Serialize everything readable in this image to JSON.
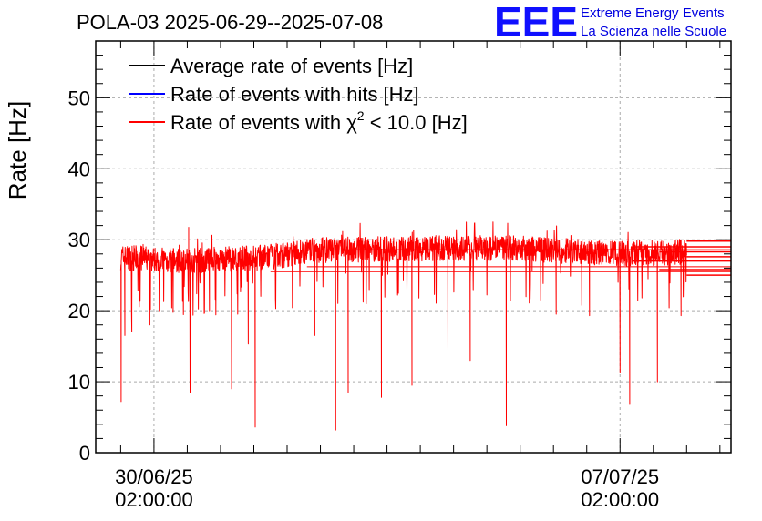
{
  "header": {
    "title": "POLA-03 2025-06-29--2025-07-08",
    "logo_text": "EEE",
    "logo_line1": "Extreme Energy Events",
    "logo_line2": "La Scienza nelle Scuole"
  },
  "colors": {
    "average": "#000000",
    "hits": "#0000ff",
    "chi2": "#ff0000",
    "grid": "#aaaaaa",
    "logo": "#1010ff"
  },
  "legend": [
    {
      "label": "Average rate of events [Hz]",
      "color": "#000000"
    },
    {
      "label": "Rate of events with hits [Hz]",
      "color": "#0000ff"
    },
    {
      "label": "Rate of events with χ² < 10.0 [Hz]",
      "color": "#ff0000",
      "prefix": "Rate of events with ",
      "chi": "χ",
      "sup": "2",
      "suffix": " < 10.0 [Hz]"
    }
  ],
  "chart_data": {
    "type": "line",
    "title": "POLA-03 2025-06-29--2025-07-08",
    "ylabel": "Rate [Hz]",
    "xlabel": "",
    "ylim": [
      0,
      58
    ],
    "yticks": [
      0,
      10,
      20,
      30,
      40,
      50
    ],
    "xlim": [
      "2025-06-29T05:00:00",
      "2025-07-08T18:00:00"
    ],
    "xticks": [
      {
        "date": "2025-06-30T02:00:00",
        "line1": "30/06/25",
        "line2": "02:00:00"
      },
      {
        "date": "2025-07-07T02:00:00",
        "line1": "07/07/25",
        "line2": "02:00:00"
      }
    ],
    "grid": true,
    "legend_position": "top-left",
    "data_range": [
      "2025-06-29T14:00:00",
      "2025-07-08T02:00:00"
    ],
    "series": [
      {
        "name": "Rate of events with χ² < 10.0 [Hz]",
        "color": "#ff0000",
        "trend": [
          {
            "t": "2025-06-29T14:00:00",
            "v": 27.5
          },
          {
            "t": "2025-06-30T12:00:00",
            "v": 27.0
          },
          {
            "t": "2025-07-01T18:00:00",
            "v": 27.5
          },
          {
            "t": "2025-07-02T12:00:00",
            "v": 28.5
          },
          {
            "t": "2025-07-04T00:00:00",
            "v": 28.8
          },
          {
            "t": "2025-07-05T12:00:00",
            "v": 28.8
          },
          {
            "t": "2025-07-07T00:00:00",
            "v": 28.0
          },
          {
            "t": "2025-07-08T02:00:00",
            "v": 28.3
          }
        ],
        "dips": [
          {
            "t": "2025-06-29T14:10:00",
            "v": 7.2
          },
          {
            "t": "2025-06-29T15:30:00",
            "v": 16.5
          },
          {
            "t": "2025-06-29T18:00:00",
            "v": 17.0
          },
          {
            "t": "2025-06-30T00:30:00",
            "v": 18.0
          },
          {
            "t": "2025-06-30T15:00:00",
            "v": 8.5
          },
          {
            "t": "2025-06-30T22:00:00",
            "v": 20.0
          },
          {
            "t": "2025-07-01T06:00:00",
            "v": 9.0
          },
          {
            "t": "2025-07-01T12:00:00",
            "v": 15.3
          },
          {
            "t": "2025-07-01T14:30:00",
            "v": 3.6
          },
          {
            "t": "2025-07-02T12:00:00",
            "v": 16.5
          },
          {
            "t": "2025-07-02T19:30:00",
            "v": 3.2
          },
          {
            "t": "2025-07-03T00:00:00",
            "v": 8.5
          },
          {
            "t": "2025-07-03T12:00:00",
            "v": 7.8
          },
          {
            "t": "2025-07-03T23:00:00",
            "v": 9.5
          },
          {
            "t": "2025-07-04T12:00:00",
            "v": 14.5
          },
          {
            "t": "2025-07-04T20:00:00",
            "v": 13.0
          },
          {
            "t": "2025-07-05T09:00:00",
            "v": 3.8
          },
          {
            "t": "2025-07-06T03:00:00",
            "v": 19.5
          },
          {
            "t": "2025-07-06T15:00:00",
            "v": 19.3
          },
          {
            "t": "2025-07-07T02:00:00",
            "v": 11.3
          },
          {
            "t": "2025-07-07T05:30:00",
            "v": 6.8
          },
          {
            "t": "2025-07-07T15:30:00",
            "v": 10.0
          },
          {
            "t": "2025-07-08T00:00:00",
            "v": 19.3
          }
        ],
        "tail_levels": [
          25.0,
          25.8,
          27.0,
          27.6,
          28.3,
          29.0,
          29.8
        ]
      },
      {
        "name": "Rate of events with hits [Hz]",
        "color": "#0000ff",
        "trend": []
      },
      {
        "name": "Average rate of events [Hz]",
        "color": "#000000",
        "trend": []
      }
    ]
  }
}
